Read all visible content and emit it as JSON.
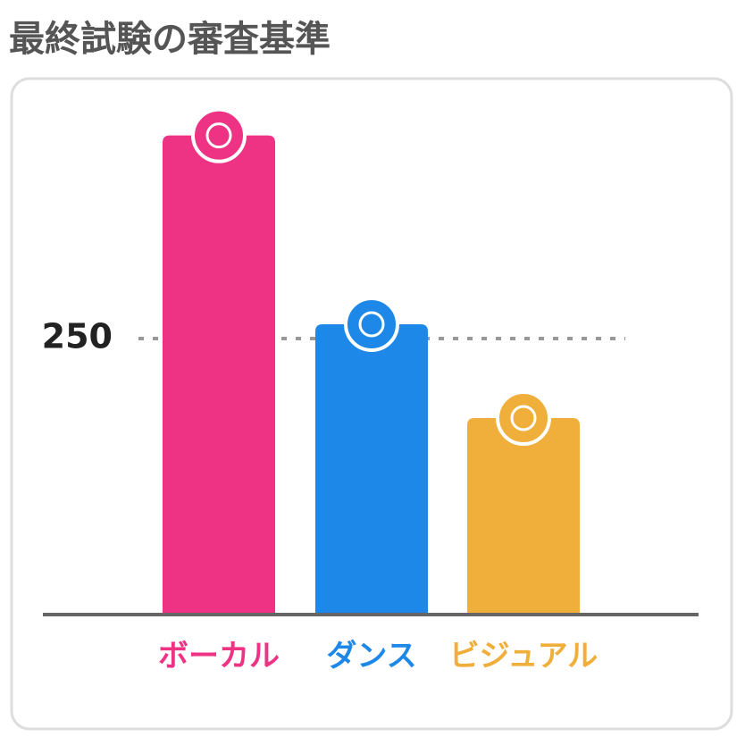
{
  "chart_data": {
    "type": "bar",
    "title": "最終試験の審査基準",
    "categories": [
      "ボーカル",
      "ダンス",
      "ビジュアル"
    ],
    "values": [
      434,
      263,
      178
    ],
    "colors": [
      "#ee3385",
      "#1e88e8",
      "#f0ae3a"
    ],
    "ylim": [
      0,
      475
    ],
    "yticks": [
      250
    ],
    "grid": true
  }
}
